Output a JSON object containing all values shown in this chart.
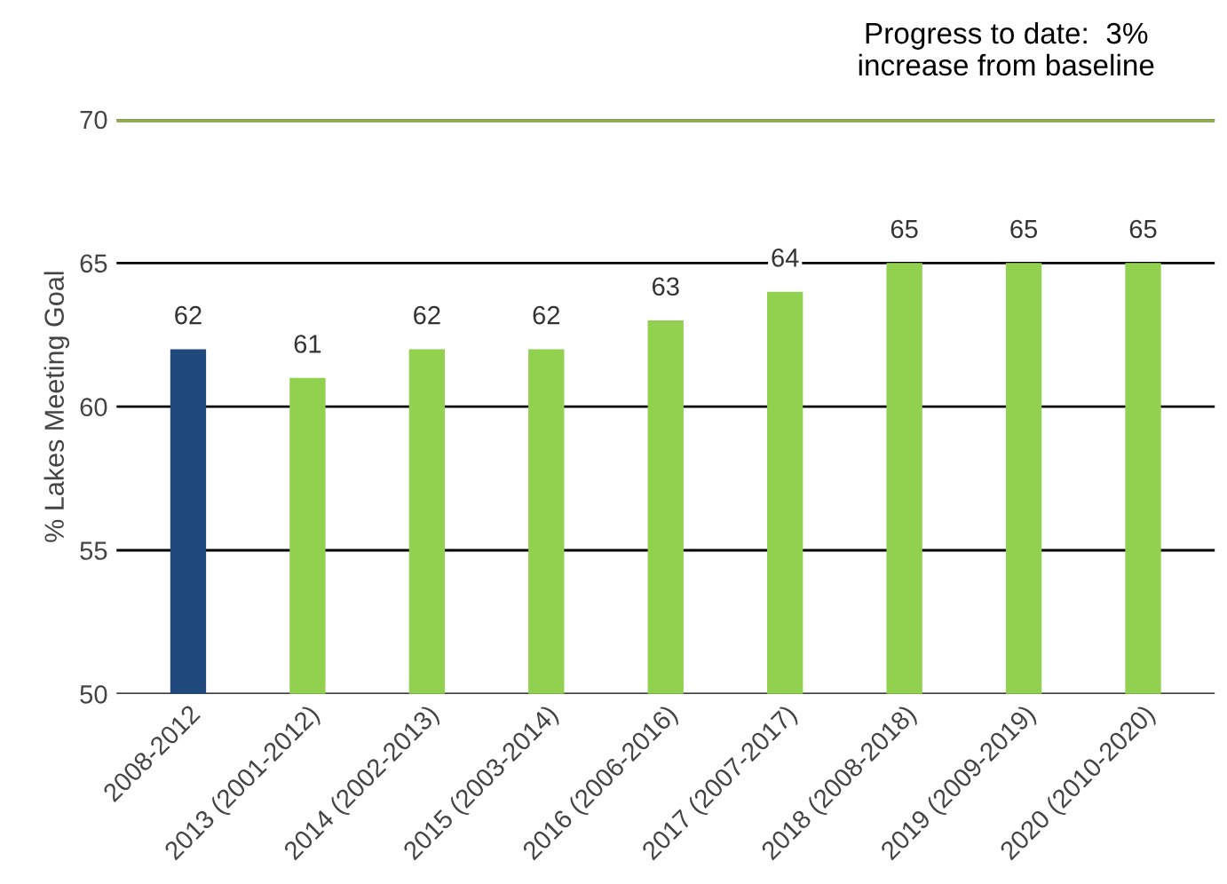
{
  "chart_data": {
    "type": "bar",
    "ylabel": "% Lakes Meeting Goal",
    "categories": [
      "2008-2012",
      "2013 (2001-2012)",
      "2014 (2002-2013)",
      "2015 (2003-2014)",
      "2016 (2006-2016)",
      "2017 (2007-2017)",
      "2018 (2008-2018)",
      "2019 (2009-2019)",
      "2020 (2010-2020)"
    ],
    "values": [
      62,
      61,
      62,
      62,
      63,
      64,
      65,
      65,
      65
    ],
    "colors": [
      "#1f497d",
      "#92d050",
      "#92d050",
      "#92d050",
      "#92d050",
      "#92d050",
      "#92d050",
      "#92d050",
      "#92d050"
    ],
    "data_labels": true,
    "ylim": [
      50,
      70
    ],
    "yticks": [
      50,
      55,
      60,
      65,
      70
    ],
    "grid": "y",
    "ref_lines": [
      {
        "axis": "y",
        "value": 70,
        "label": null,
        "color": "#92b050"
      }
    ],
    "annotations": [
      "Progress to date:  3%\nincrease from baseline"
    ]
  }
}
